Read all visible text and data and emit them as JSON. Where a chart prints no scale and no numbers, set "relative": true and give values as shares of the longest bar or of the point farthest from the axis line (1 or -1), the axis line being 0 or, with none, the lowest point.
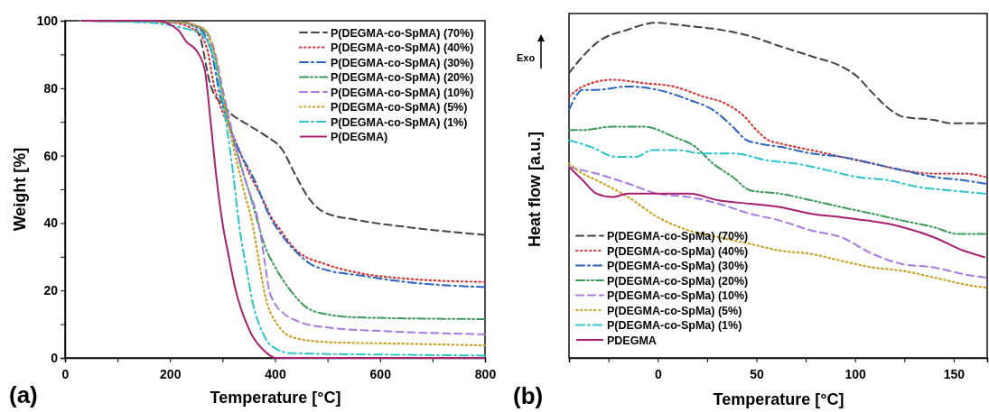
{
  "chart_data": [
    {
      "type": "line",
      "title": "(a)",
      "xlabel": "Temperature [°C]",
      "ylabel": "Weight [%]",
      "xlim": [
        0,
        800
      ],
      "ylim": [
        0,
        100
      ],
      "xticks": [
        0,
        {
          "value": 100,
          "label": null
        },
        200,
        {
          "value": 300,
          "label": null
        },
        400,
        {
          "value": 500,
          "label": null
        },
        600,
        {
          "value": 700,
          "label": null
        },
        800
      ],
      "yticks": [
        0,
        {
          "value": 10,
          "label": null
        },
        20,
        {
          "value": 30,
          "label": null
        },
        40,
        {
          "value": 50,
          "label": null
        },
        60,
        {
          "value": 70,
          "label": null
        },
        80,
        {
          "value": 90,
          "label": null
        },
        100
      ],
      "legend": "top right",
      "series": [
        {
          "name": "P(DEGMA-co-SpMA) (70%)",
          "color": "#444444",
          "line_style": "dashed",
          "x": [
            30,
            150,
            230,
            255,
            277,
            306,
            350,
            381,
            415,
            438,
            466,
            496,
            553,
            668,
            800
          ],
          "values": [
            100,
            100,
            99.5,
            96,
            81,
            74,
            69,
            66,
            61.5,
            54.5,
            47,
            43,
            41,
            38.5,
            36.5
          ]
        },
        {
          "name": "P(DEGMA-co-SpMA) (40%)",
          "color": "#d23b3b",
          "line_style": "dotted",
          "x": [
            30,
            200,
            250,
            270,
            285,
            300,
            320,
            350,
            380,
            392,
            410,
            440,
            496,
            550,
            650,
            800
          ],
          "values": [
            100,
            99.5,
            97,
            92,
            80,
            73,
            66,
            55,
            46,
            42,
            38,
            32,
            27.8,
            25.5,
            23.5,
            22.5
          ]
        },
        {
          "name": "P(DEGMA-co-SpMA) (30%)",
          "color": "#2a62c0",
          "line_style": "dashdot",
          "x": [
            30,
            220,
            260,
            280,
            295,
            310,
            330,
            360,
            390,
            420,
            450,
            466,
            500,
            560,
            650,
            800
          ],
          "values": [
            100,
            99.5,
            97,
            90,
            78,
            70,
            62,
            53,
            42,
            35,
            30,
            28,
            26,
            24.5,
            22.5,
            21
          ]
        },
        {
          "name": "P(DEGMA-co-SpMA) (20%)",
          "color": "#3a9a5a",
          "line_style": "dashdotdot",
          "x": [
            30,
            220,
            265,
            285,
            300,
            315,
            335,
            355,
            381,
            400,
            427,
            460,
            496,
            560,
            800
          ],
          "values": [
            100,
            99.5,
            97,
            90,
            78,
            68,
            57,
            47,
            33,
            27,
            20.5,
            15,
            13,
            12,
            11.5
          ]
        },
        {
          "name": "P(DEGMA-co-SpMA) (10%)",
          "color": "#a77ae0",
          "line_style": "dashed",
          "x": [
            30,
            220,
            265,
            285,
            300,
            320,
            345,
            370,
            380,
            387,
            400,
            415,
            450,
            500,
            600,
            800
          ],
          "values": [
            100,
            99.5,
            97.5,
            91,
            80,
            66,
            52,
            39,
            29,
            21.5,
            16,
            13.4,
            10.5,
            9,
            8,
            7
          ]
        },
        {
          "name": "P(DEGMA-co-SpMA) (5%)",
          "color": "#c9a227",
          "line_style": "dotted",
          "x": [
            30,
            220,
            265,
            285,
            300,
            320,
            340,
            358,
            370,
            381,
            404,
            438,
            500,
            650,
            800
          ],
          "values": [
            100,
            99.5,
            97.5,
            90,
            78,
            63,
            50,
            39,
            28,
            18.7,
            10,
            5.9,
            4.7,
            4.2,
            3.7
          ]
        },
        {
          "name": "P(DEGMA-co-SpMA) (1%)",
          "color": "#2cc3c9",
          "line_style": "dashdot",
          "x": [
            30,
            150,
            220,
            260,
            285,
            306,
            320,
            332,
            345,
            358,
            375,
            392,
            430,
            600,
            800
          ],
          "values": [
            100,
            99.5,
            98,
            96,
            88,
            70.5,
            55,
            39,
            27,
            16,
            8,
            3.7,
            1.4,
            1,
            0.7
          ]
        },
        {
          "name": "P(DEGMA)",
          "color": "#a8206f",
          "line_style": "solid",
          "x": [
            30,
            174,
            215,
            232,
            249,
            266,
            277,
            289,
            301,
            312,
            323,
            352,
            381,
            401,
            800
          ],
          "values": [
            100,
            100,
            97.3,
            93.6,
            91.4,
            85.6,
            70.6,
            52.7,
            39,
            30,
            21.4,
            8,
            1.9,
            0,
            0
          ]
        }
      ]
    },
    {
      "type": "line",
      "title": "(b)",
      "xlabel": "Temperature [°C]",
      "ylabel": "Heat flow [a.u.]",
      "relative": true,
      "xlim": [
        -45,
        167
      ],
      "xticks": [
        {
          "value": -25,
          "label": null
        },
        0,
        {
          "value": 25,
          "label": null
        },
        50,
        {
          "value": 75,
          "label": null
        },
        100,
        {
          "value": 125,
          "label": null
        },
        150
      ],
      "legend": "bottom left",
      "annotations": [
        "Exo"
      ],
      "series": [
        {
          "name": "P(DEGMA-co-SpMa) (70%)",
          "color": "#444444",
          "line_style": "dashed",
          "x": [
            -45,
            -38,
            -31,
            -15,
            -1,
            16,
            31,
            47,
            62,
            78,
            93,
            101,
            109,
            118,
            124,
            140,
            149,
            158,
            166
          ],
          "values": [
            0.85,
            0.9,
            0.94,
            0.98,
            1,
            0.99,
            0.98,
            0.96,
            0.93,
            0.9,
            0.87,
            0.84,
            0.79,
            0.74,
            0.72,
            0.71,
            0.7,
            0.7,
            0.7
          ]
        },
        {
          "name": "P(DEGMA-co-SpMa) (40%)",
          "color": "#d23b3b",
          "line_style": "dotted",
          "x": [
            -45,
            -38,
            -23,
            -7,
            8,
            23,
            34,
            44,
            50,
            56,
            62,
            78,
            93,
            109,
            124,
            140,
            155,
            166
          ],
          "values": [
            0.78,
            0.81,
            0.83,
            0.82,
            0.81,
            0.78,
            0.76,
            0.72,
            0.68,
            0.65,
            0.64,
            0.62,
            0.6,
            0.58,
            0.56,
            0.55,
            0.55,
            0.54
          ]
        },
        {
          "name": "P(DEGMA-co-SpMa) (30%)",
          "color": "#2a62c0",
          "line_style": "dashdot",
          "x": [
            -45,
            -38,
            -31,
            -15,
            0,
            16,
            28,
            38,
            45,
            51,
            62,
            78,
            93,
            109,
            124,
            140,
            155,
            166
          ],
          "values": [
            0.74,
            0.8,
            0.8,
            0.81,
            0.8,
            0.77,
            0.74,
            0.69,
            0.65,
            0.64,
            0.63,
            0.61,
            0.6,
            0.58,
            0.56,
            0.54,
            0.53,
            0.52
          ]
        },
        {
          "name": "P(DEGMA-co-SpMa) (20%)",
          "color": "#3a9a5a",
          "line_style": "dashdotdot",
          "x": [
            -45,
            -38,
            -23,
            -7,
            8,
            19,
            28,
            38,
            47,
            62,
            78,
            93,
            109,
            124,
            140,
            152,
            166
          ],
          "values": [
            0.68,
            0.68,
            0.69,
            0.69,
            0.66,
            0.63,
            0.58,
            0.54,
            0.5,
            0.49,
            0.47,
            0.45,
            0.43,
            0.41,
            0.39,
            0.37,
            0.37
          ]
        },
        {
          "name": "P(DEGMA-co-SpMa) (10%)",
          "color": "#a77ae0",
          "line_style": "dashed",
          "x": [
            -45,
            -38,
            -31,
            -15,
            0,
            16,
            31,
            47,
            62,
            78,
            93,
            109,
            124,
            140,
            155,
            166
          ],
          "values": [
            0.57,
            0.56,
            0.55,
            0.52,
            0.49,
            0.48,
            0.46,
            0.43,
            0.41,
            0.38,
            0.36,
            0.31,
            0.28,
            0.27,
            0.25,
            0.24
          ]
        },
        {
          "name": "P(DEGMA-co-SpMa) (5%)",
          "color": "#c9a227",
          "line_style": "dotted",
          "x": [
            -45,
            -38,
            -31,
            -15,
            0,
            16,
            31,
            47,
            62,
            78,
            93,
            109,
            124,
            140,
            155,
            166
          ],
          "values": [
            0.58,
            0.55,
            0.53,
            0.48,
            0.42,
            0.38,
            0.36,
            0.34,
            0.32,
            0.31,
            0.29,
            0.27,
            0.26,
            0.24,
            0.22,
            0.21
          ]
        },
        {
          "name": "P(DEGMA-co-SpMa) (1%)",
          "color": "#2cc3c9",
          "line_style": "dashdot",
          "x": [
            -45,
            -34,
            -21,
            -11,
            -3,
            10,
            23,
            39,
            55,
            70,
            86,
            101,
            117,
            132,
            148,
            166
          ],
          "values": [
            0.65,
            0.63,
            0.6,
            0.6,
            0.62,
            0.62,
            0.61,
            0.61,
            0.59,
            0.58,
            0.56,
            0.54,
            0.53,
            0.51,
            0.5,
            0.49
          ]
        },
        {
          "name": "PDEGMA",
          "color": "#a8206f",
          "line_style": "solid",
          "x": [
            -45,
            -38,
            -31,
            -23,
            -15,
            0,
            16,
            31,
            47,
            62,
            78,
            93,
            106,
            117,
            124,
            140,
            155,
            166
          ],
          "values": [
            0.57,
            0.53,
            0.49,
            0.48,
            0.49,
            0.49,
            0.49,
            0.47,
            0.46,
            0.45,
            0.43,
            0.42,
            0.41,
            0.4,
            0.39,
            0.36,
            0.32,
            0.3
          ]
        }
      ]
    }
  ]
}
